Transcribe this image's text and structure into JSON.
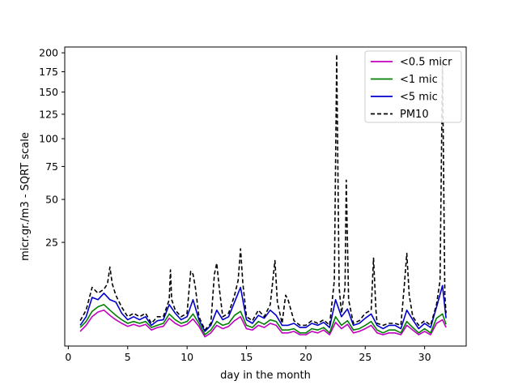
{
  "chart_data": {
    "type": "line",
    "title": "",
    "xlabel": "day in the month",
    "ylabel": "micr.gr./m3 - SQRT scale",
    "yscale": "sqrt",
    "xlim": [
      -0.3,
      33.5
    ],
    "ylim": [
      0,
      208
    ],
    "xticks": [
      0,
      5,
      10,
      15,
      20,
      25,
      30
    ],
    "xtick_labels": [
      "0",
      "5",
      "10",
      "15",
      "20",
      "25",
      "30"
    ],
    "yticks": [
      25,
      50,
      75,
      100,
      125,
      150,
      175,
      200
    ],
    "ytick_labels": [
      "25",
      "50",
      "75",
      "100",
      "125",
      "150",
      "175",
      "200"
    ],
    "grid": false,
    "legend_position": "top-right",
    "series": [
      {
        "name": "<0.5 micr",
        "color": "#bf00bf",
        "dash": "solid",
        "x": [
          1.0,
          1.5,
          2.0,
          2.5,
          3.0,
          3.5,
          4.0,
          4.5,
          5.0,
          5.5,
          6.0,
          6.5,
          7.0,
          7.5,
          8.0,
          8.5,
          9.0,
          9.5,
          10.0,
          10.5,
          11.0,
          11.5,
          12.0,
          12.5,
          13.0,
          13.5,
          14.0,
          14.5,
          15.0,
          15.5,
          16.0,
          16.5,
          17.0,
          17.5,
          18.0,
          18.5,
          19.0,
          19.5,
          20.0,
          20.5,
          21.0,
          21.5,
          22.0,
          22.5,
          23.0,
          23.5,
          24.0,
          24.5,
          25.0,
          25.5,
          26.0,
          26.5,
          27.0,
          27.5,
          28.0,
          28.5,
          29.0,
          29.5,
          30.0,
          30.5,
          31.0,
          31.5,
          31.8
        ],
        "y": [
          0.5,
          1.0,
          2.0,
          2.7,
          3.0,
          2.2,
          1.6,
          1.2,
          0.9,
          1.1,
          0.9,
          1.1,
          0.6,
          0.8,
          0.9,
          1.8,
          1.2,
          0.9,
          1.1,
          1.7,
          0.9,
          0.2,
          0.4,
          1.0,
          0.7,
          0.9,
          1.5,
          2.0,
          0.7,
          0.6,
          1.0,
          0.8,
          1.2,
          1.0,
          0.4,
          0.4,
          0.5,
          0.3,
          0.3,
          0.5,
          0.4,
          0.6,
          0.3,
          1.3,
          0.7,
          1.1,
          0.4,
          0.5,
          0.7,
          1.0,
          0.4,
          0.3,
          0.4,
          0.4,
          0.3,
          1.0,
          0.6,
          0.3,
          0.5,
          0.3,
          1.2,
          1.6,
          0.8
        ]
      },
      {
        "name": "<1 mic",
        "color": "#008000",
        "dash": "solid",
        "x": [
          1.0,
          1.5,
          2.0,
          2.5,
          3.0,
          3.5,
          4.0,
          4.5,
          5.0,
          5.5,
          6.0,
          6.5,
          7.0,
          7.5,
          8.0,
          8.5,
          9.0,
          9.5,
          10.0,
          10.5,
          11.0,
          11.5,
          12.0,
          12.5,
          13.0,
          13.5,
          14.0,
          14.5,
          15.0,
          15.5,
          16.0,
          16.5,
          17.0,
          17.5,
          18.0,
          18.5,
          19.0,
          19.5,
          20.0,
          20.5,
          21.0,
          21.5,
          22.0,
          22.5,
          23.0,
          23.5,
          24.0,
          24.5,
          25.0,
          25.5,
          26.0,
          26.5,
          27.0,
          27.5,
          28.0,
          28.5,
          29.0,
          29.5,
          30.0,
          30.5,
          31.0,
          31.5,
          31.8
        ],
        "y": [
          0.8,
          1.4,
          2.8,
          3.6,
          4.0,
          3.0,
          2.2,
          1.6,
          1.2,
          1.4,
          1.2,
          1.4,
          0.8,
          1.0,
          1.2,
          2.4,
          1.6,
          1.2,
          1.4,
          2.4,
          1.2,
          0.3,
          0.6,
          1.4,
          1.0,
          1.2,
          2.2,
          2.8,
          1.0,
          0.8,
          1.4,
          1.1,
          1.6,
          1.4,
          0.6,
          0.6,
          0.7,
          0.4,
          0.4,
          0.7,
          0.6,
          0.8,
          0.4,
          2.0,
          1.0,
          1.5,
          0.6,
          0.7,
          1.0,
          1.4,
          0.6,
          0.4,
          0.6,
          0.6,
          0.4,
          1.4,
          0.8,
          0.4,
          0.7,
          0.4,
          1.8,
          2.4,
          1.1
        ]
      },
      {
        "name": "<5 mic",
        "color": "#0000cc",
        "dash": "solid",
        "x": [
          1.0,
          1.5,
          2.0,
          2.5,
          3.0,
          3.5,
          4.0,
          4.5,
          5.0,
          5.5,
          6.0,
          6.5,
          7.0,
          7.5,
          8.0,
          8.5,
          9.0,
          9.5,
          10.0,
          10.5,
          11.0,
          11.5,
          12.0,
          12.5,
          13.0,
          13.5,
          14.0,
          14.5,
          15.0,
          15.5,
          16.0,
          16.5,
          17.0,
          17.5,
          18.0,
          18.5,
          19.0,
          19.5,
          20.0,
          20.5,
          21.0,
          21.5,
          22.0,
          22.5,
          23.0,
          23.5,
          24.0,
          24.5,
          25.0,
          25.5,
          26.0,
          26.5,
          27.0,
          27.5,
          28.0,
          28.5,
          29.0,
          29.5,
          30.0,
          30.5,
          31.0,
          31.5,
          31.8
        ],
        "y": [
          1.0,
          2.0,
          5.5,
          5.0,
          6.5,
          5.0,
          4.5,
          2.5,
          1.6,
          2.0,
          1.6,
          2.0,
          1.0,
          1.5,
          1.6,
          4.0,
          2.5,
          1.6,
          2.0,
          5.0,
          1.6,
          0.5,
          1.0,
          3.0,
          1.6,
          2.0,
          4.5,
          8.0,
          1.6,
          1.2,
          2.2,
          1.8,
          3.0,
          2.2,
          1.0,
          1.0,
          1.2,
          0.8,
          0.8,
          1.2,
          1.0,
          1.3,
          0.8,
          5.0,
          2.0,
          3.2,
          1.0,
          1.2,
          1.8,
          2.4,
          1.0,
          0.7,
          1.0,
          1.0,
          0.7,
          3.0,
          1.6,
          0.7,
          1.2,
          0.8,
          3.5,
          8.5,
          1.8
        ]
      },
      {
        "name": "PM10",
        "color": "#000000",
        "dash": "dashed",
        "x": [
          1.0,
          1.5,
          2.0,
          2.5,
          3.0,
          3.3,
          3.5,
          3.7,
          4.0,
          4.5,
          5.0,
          5.5,
          6.0,
          6.5,
          7.0,
          7.5,
          8.0,
          8.5,
          8.6,
          8.7,
          9.0,
          9.5,
          10.0,
          10.3,
          10.5,
          10.7,
          11.0,
          11.5,
          12.0,
          12.3,
          12.5,
          12.7,
          13.0,
          13.5,
          14.0,
          14.3,
          14.5,
          14.7,
          15.0,
          15.5,
          16.0,
          16.5,
          17.0,
          17.4,
          17.6,
          18.0,
          18.3,
          18.5,
          19.0,
          19.5,
          20.0,
          20.5,
          21.0,
          21.5,
          22.0,
          22.4,
          22.6,
          22.8,
          23.0,
          23.3,
          23.4,
          23.6,
          24.0,
          24.5,
          25.0,
          25.5,
          25.7,
          25.9,
          26.0,
          26.5,
          27.0,
          27.5,
          28.0,
          28.3,
          28.5,
          28.7,
          29.0,
          29.5,
          30.0,
          30.5,
          31.0,
          31.3,
          31.5,
          31.7,
          31.8
        ],
        "y": [
          1.5,
          3.0,
          8.0,
          6.5,
          7.5,
          9.0,
          14.5,
          9.0,
          6.0,
          3.5,
          2.0,
          2.5,
          2.0,
          2.5,
          1.2,
          2.0,
          2.0,
          5.0,
          13.5,
          5.0,
          3.0,
          2.0,
          2.5,
          13.0,
          12.0,
          8.0,
          2.0,
          0.6,
          1.2,
          12.0,
          16.0,
          8.0,
          2.0,
          2.5,
          6.0,
          10.0,
          22.0,
          9.0,
          2.0,
          1.5,
          3.0,
          2.0,
          4.0,
          17.0,
          4.5,
          1.2,
          6.0,
          5.0,
          1.5,
          1.0,
          1.0,
          1.5,
          1.2,
          1.6,
          1.0,
          10.0,
          198.0,
          8.0,
          2.5,
          8.0,
          64.0,
          5.0,
          1.2,
          1.5,
          2.5,
          3.0,
          18.0,
          3.0,
          1.2,
          1.0,
          1.2,
          1.2,
          1.0,
          9.0,
          20.0,
          6.0,
          2.0,
          1.0,
          1.5,
          1.0,
          4.0,
          10.0,
          188.0,
          6.0,
          2.5
        ]
      }
    ]
  }
}
